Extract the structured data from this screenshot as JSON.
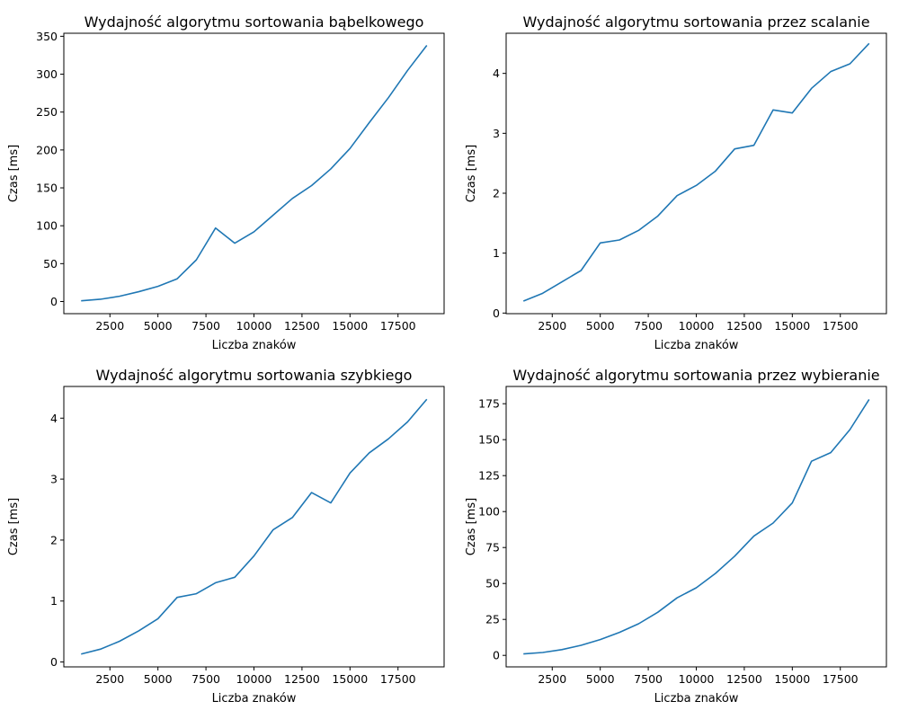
{
  "chart_data": [
    {
      "type": "line",
      "title": "Wydajność algorytmu sortowania bąbelkowego",
      "xlabel": "Liczba znaków",
      "ylabel": "Czas [ms]",
      "xlim": [
        100,
        19900
      ],
      "ylim": [
        -16,
        354
      ],
      "x_ticks": [
        2500,
        5000,
        7500,
        10000,
        12500,
        15000,
        17500
      ],
      "x_tick_labels": [
        "2500",
        "5000",
        "7500",
        "10000",
        "12500",
        "15000",
        "17500"
      ],
      "y_ticks": [
        0,
        50,
        100,
        150,
        200,
        250,
        300,
        350
      ],
      "y_tick_labels": [
        "0",
        "50",
        "100",
        "150",
        "200",
        "250",
        "300",
        "350"
      ],
      "grid": false,
      "color": "#1f77b4",
      "x": [
        1000,
        2000,
        3000,
        4000,
        5000,
        6000,
        7000,
        8000,
        9000,
        10000,
        11000,
        12000,
        13000,
        14000,
        15000,
        16000,
        17000,
        18000,
        19000
      ],
      "y": [
        1,
        3,
        7,
        13,
        20,
        30,
        55,
        97,
        77,
        92,
        114,
        136,
        153,
        175,
        202,
        236,
        269,
        305,
        338
      ]
    },
    {
      "type": "line",
      "title": "Wydajność algorytmu sortowania przez scalanie",
      "xlabel": "Liczba znaków",
      "ylabel": "Czas [ms]",
      "xlim": [
        100,
        19900
      ],
      "ylim": [
        -0.01,
        4.67
      ],
      "x_ticks": [
        2500,
        5000,
        7500,
        10000,
        12500,
        15000,
        17500
      ],
      "x_tick_labels": [
        "2500",
        "5000",
        "7500",
        "10000",
        "12500",
        "15000",
        "17500"
      ],
      "y_ticks": [
        0,
        1,
        2,
        3,
        4
      ],
      "y_tick_labels": [
        "0",
        "1",
        "2",
        "3",
        "4"
      ],
      "grid": false,
      "color": "#1f77b4",
      "x": [
        1000,
        2000,
        3000,
        4000,
        5000,
        6000,
        7000,
        8000,
        9000,
        10000,
        11000,
        12000,
        13000,
        14000,
        15000,
        16000,
        17000,
        18000,
        19000
      ],
      "y": [
        0.2,
        0.33,
        0.52,
        0.71,
        1.17,
        1.22,
        1.38,
        1.62,
        1.96,
        2.13,
        2.37,
        2.74,
        2.8,
        3.39,
        3.34,
        3.75,
        4.03,
        4.16,
        4.5
      ]
    },
    {
      "type": "line",
      "title": "Wydajność algorytmu sortowania szybkiego",
      "xlabel": "Liczba znaków",
      "ylabel": "Czas [ms]",
      "xlim": [
        100,
        19900
      ],
      "ylim": [
        -0.08,
        4.52
      ],
      "x_ticks": [
        2500,
        5000,
        7500,
        10000,
        12500,
        15000,
        17500
      ],
      "x_tick_labels": [
        "2500",
        "5000",
        "7500",
        "10000",
        "12500",
        "15000",
        "17500"
      ],
      "y_ticks": [
        0,
        1,
        2,
        3,
        4
      ],
      "y_tick_labels": [
        "0",
        "1",
        "2",
        "3",
        "4"
      ],
      "grid": false,
      "color": "#1f77b4",
      "x": [
        1000,
        2000,
        3000,
        4000,
        5000,
        6000,
        7000,
        8000,
        9000,
        10000,
        11000,
        12000,
        13000,
        14000,
        15000,
        16000,
        17000,
        18000,
        19000
      ],
      "y": [
        0.13,
        0.21,
        0.34,
        0.51,
        0.71,
        1.06,
        1.12,
        1.3,
        1.39,
        1.74,
        2.17,
        2.37,
        2.78,
        2.61,
        3.1,
        3.43,
        3.66,
        3.94,
        4.31
      ]
    },
    {
      "type": "line",
      "title": "Wydajność algorytmu sortowania przez wybieranie",
      "xlabel": "Liczba znaków",
      "ylabel": "Czas [ms]",
      "xlim": [
        100,
        19900
      ],
      "ylim": [
        -8,
        187
      ],
      "x_ticks": [
        2500,
        5000,
        7500,
        10000,
        12500,
        15000,
        17500
      ],
      "x_tick_labels": [
        "2500",
        "5000",
        "7500",
        "10000",
        "12500",
        "15000",
        "17500"
      ],
      "y_ticks": [
        0,
        25,
        50,
        75,
        100,
        125,
        150,
        175
      ],
      "y_tick_labels": [
        "0",
        "25",
        "50",
        "75",
        "100",
        "125",
        "150",
        "175"
      ],
      "grid": false,
      "color": "#1f77b4",
      "x": [
        1000,
        2000,
        3000,
        4000,
        5000,
        6000,
        7000,
        8000,
        9000,
        10000,
        11000,
        12000,
        13000,
        14000,
        15000,
        16000,
        17000,
        18000,
        19000
      ],
      "y": [
        1,
        2,
        4,
        7,
        11,
        16,
        22,
        30,
        40,
        47,
        57,
        69,
        83,
        92,
        106,
        135,
        141,
        157,
        178
      ]
    }
  ]
}
